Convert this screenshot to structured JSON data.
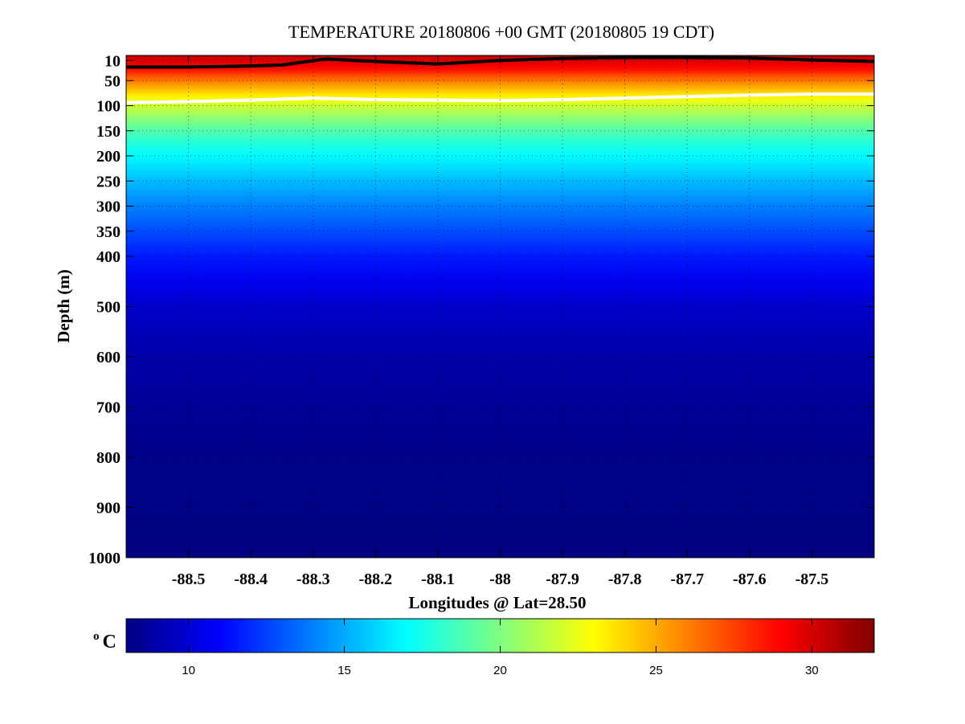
{
  "chart_data": {
    "type": "heatmap",
    "title": "TEMPERATURE 20180806 +00 GMT (20180805 19 CDT)",
    "xlabel": "Longitudes @ Lat=28.50",
    "ylabel": "Depth (m)",
    "xlim": [
      -88.6,
      -87.4
    ],
    "ylim": [
      1000,
      0
    ],
    "x_ticks": [
      -88.5,
      -88.4,
      -88.3,
      -88.2,
      -88.1,
      -88,
      -87.9,
      -87.8,
      -87.7,
      -87.6,
      -87.5
    ],
    "x_tick_labels": [
      "-88.5",
      "-88.4",
      "-88.3",
      "-88.2",
      "-88.1",
      "-88",
      "-87.9",
      "-87.8",
      "-87.7",
      "-87.6",
      "-87.5"
    ],
    "y_ticks": [
      10,
      50,
      100,
      150,
      200,
      250,
      300,
      350,
      400,
      500,
      600,
      700,
      800,
      900,
      1000
    ],
    "y_tick_labels": [
      "10",
      "50",
      "100",
      "150",
      "200",
      "250",
      "300",
      "350",
      "400",
      "500",
      "600",
      "700",
      "800",
      "900",
      "1000"
    ],
    "grid": true,
    "colormap": "jet",
    "temperature_profile": [
      {
        "depth": 0,
        "temp": 30.5
      },
      {
        "depth": 10,
        "temp": 29.8
      },
      {
        "depth": 20,
        "temp": 29.3
      },
      {
        "depth": 30,
        "temp": 28.5
      },
      {
        "depth": 40,
        "temp": 27.2
      },
      {
        "depth": 50,
        "temp": 26.2
      },
      {
        "depth": 60,
        "temp": 25.2
      },
      {
        "depth": 70,
        "temp": 24.3
      },
      {
        "depth": 80,
        "temp": 23.4
      },
      {
        "depth": 90,
        "temp": 22.6
      },
      {
        "depth": 100,
        "temp": 21.8
      },
      {
        "depth": 125,
        "temp": 20.3
      },
      {
        "depth": 150,
        "temp": 18.9
      },
      {
        "depth": 175,
        "temp": 17.8
      },
      {
        "depth": 200,
        "temp": 16.9
      },
      {
        "depth": 250,
        "temp": 15.4
      },
      {
        "depth": 300,
        "temp": 14.0
      },
      {
        "depth": 350,
        "temp": 12.8
      },
      {
        "depth": 400,
        "temp": 11.6
      },
      {
        "depth": 450,
        "temp": 10.6
      },
      {
        "depth": 500,
        "temp": 9.8
      },
      {
        "depth": 600,
        "temp": 9.0
      },
      {
        "depth": 700,
        "temp": 8.5
      },
      {
        "depth": 800,
        "temp": 8.2
      },
      {
        "depth": 1000,
        "temp": 8.0
      }
    ],
    "contour_lines": [
      {
        "color": "#000000",
        "points": [
          {
            "lon": -88.6,
            "depth": 23
          },
          {
            "lon": -88.5,
            "depth": 23
          },
          {
            "lon": -88.4,
            "depth": 21
          },
          {
            "lon": -88.35,
            "depth": 19
          },
          {
            "lon": -88.28,
            "depth": 7
          },
          {
            "lon": -88.2,
            "depth": 12
          },
          {
            "lon": -88.1,
            "depth": 17
          },
          {
            "lon": -88.0,
            "depth": 10
          },
          {
            "lon": -87.9,
            "depth": 6
          },
          {
            "lon": -87.8,
            "depth": 4
          },
          {
            "lon": -87.7,
            "depth": 4
          },
          {
            "lon": -87.6,
            "depth": 5
          },
          {
            "lon": -87.5,
            "depth": 9
          },
          {
            "lon": -87.4,
            "depth": 12
          }
        ]
      },
      {
        "color": "#ffffff",
        "points": [
          {
            "lon": -88.6,
            "depth": 94
          },
          {
            "lon": -88.5,
            "depth": 92
          },
          {
            "lon": -88.4,
            "depth": 89
          },
          {
            "lon": -88.3,
            "depth": 85
          },
          {
            "lon": -88.2,
            "depth": 88
          },
          {
            "lon": -88.1,
            "depth": 89
          },
          {
            "lon": -88.0,
            "depth": 90
          },
          {
            "lon": -87.9,
            "depth": 88
          },
          {
            "lon": -87.8,
            "depth": 85
          },
          {
            "lon": -87.7,
            "depth": 82
          },
          {
            "lon": -87.6,
            "depth": 79
          },
          {
            "lon": -87.5,
            "depth": 77
          },
          {
            "lon": -87.4,
            "depth": 77
          }
        ]
      }
    ],
    "colorbar": {
      "label": "C",
      "label_superscript": "o",
      "range": [
        8,
        32
      ],
      "ticks": [
        10,
        15,
        20,
        25,
        30
      ],
      "tick_labels": [
        "10",
        "15",
        "20",
        "25",
        "30"
      ]
    }
  }
}
